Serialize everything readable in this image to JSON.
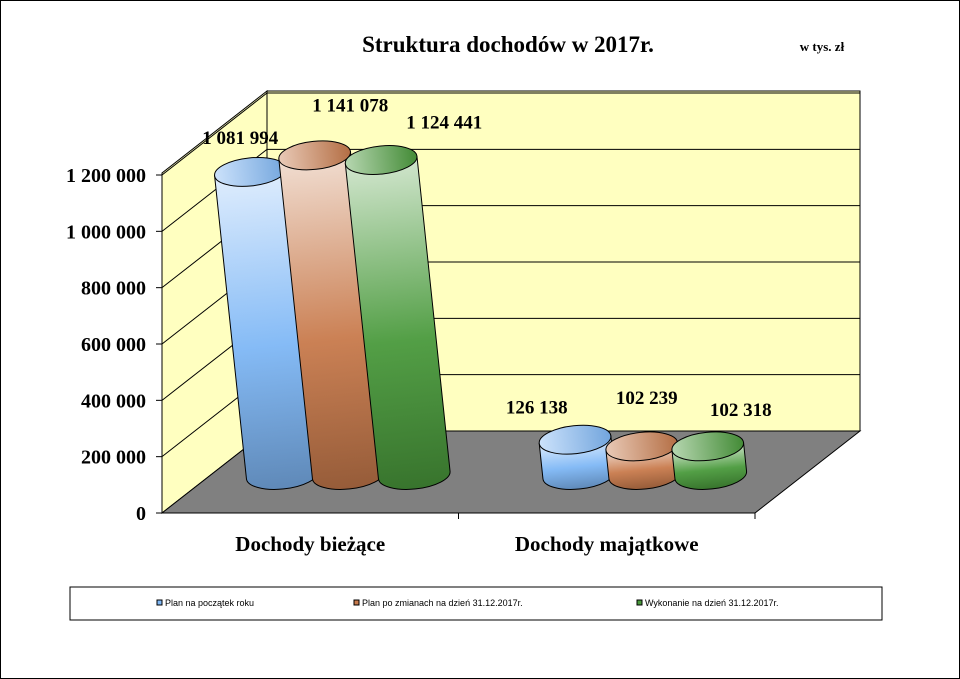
{
  "chart_data": {
    "type": "bar",
    "style": "3d-cylinder",
    "title": "Struktura dochodów w 2017r.",
    "unit_note": "w tys. zł",
    "categories": [
      "Dochody bieżące",
      "Dochody majątkowe"
    ],
    "series": [
      {
        "name": "Plan na początek roku",
        "values": [
          1081994,
          126138
        ],
        "labels": [
          "1 081 994",
          "126 138"
        ],
        "color": "#7fb7f5"
      },
      {
        "name": "Plan po zmianach na dzień 31.12.2017r.",
        "values": [
          1141078,
          102239
        ],
        "labels": [
          "1 141 078",
          "102 239"
        ],
        "color": "#c87a4c"
      },
      {
        "name": "Wykonanie na dzień 31.12.2017r.",
        "values": [
          1124441,
          102318
        ],
        "labels": [
          "1 124 441",
          "102 318"
        ],
        "color": "#4a9a3c"
      }
    ],
    "y_ticks": [
      {
        "value": 0,
        "label": "0"
      },
      {
        "value": 200000,
        "label": "200 000"
      },
      {
        "value": 400000,
        "label": "400 000"
      },
      {
        "value": 600000,
        "label": "600 000"
      },
      {
        "value": 800000,
        "label": "800 000"
      },
      {
        "value": 1000000,
        "label": "1 000 000"
      },
      {
        "value": 1200000,
        "label": "1 200 000"
      }
    ],
    "ylim": [
      0,
      1200000
    ],
    "legend_position": "bottom",
    "wall_color": "#ffffc0",
    "floor_color": "#808080"
  }
}
